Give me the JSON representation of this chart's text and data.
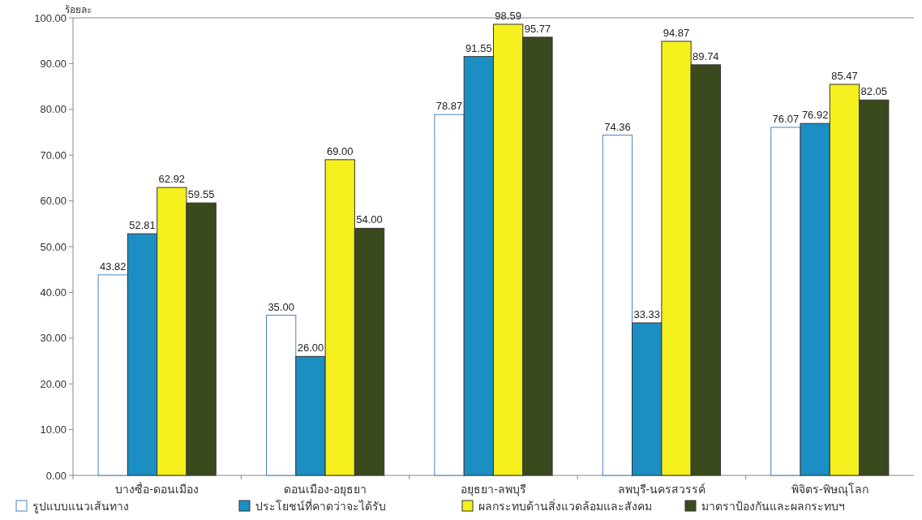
{
  "chart_data": {
    "type": "bar",
    "ylabel": "ร้อยละ",
    "categories": [
      "บางซื่อ-ดอนเมือง",
      "ดอนเมือง-อยุธยา",
      "อยุธยา-ลพบุรี",
      "ลพบุรี-นครสวรรค์",
      "พิจิตร-พิษณุโลก"
    ],
    "series": [
      {
        "name": "รูปแบบแนวเส้นทาง",
        "color": "#ffffff",
        "values": [
          43.82,
          35,
          78.87,
          74.36,
          76.07
        ],
        "value_labels": [
          "43.82",
          "35.00",
          "78.87",
          "74.36",
          "76.07"
        ]
      },
      {
        "name": "ประโยชน์ที่คาดว่าจะได้รับ",
        "color": "#1b8fc4",
        "values": [
          52.81,
          26,
          91.55,
          33.33,
          76.92
        ],
        "value_labels": [
          "52.81",
          "26.00",
          "91.55",
          "33.33",
          "76.92"
        ]
      },
      {
        "name": "ผลกระทบด้านสิ่งแวดล้อมและสังคม",
        "color": "#f5f01e",
        "values": [
          62.92,
          69,
          98.59,
          94.87,
          85.47
        ],
        "value_labels": [
          "62.92",
          "69.00",
          "98.59",
          "94.87",
          "85.47"
        ]
      },
      {
        "name": "มาตราป้องกันและผลกระทบฯ",
        "color": "#3a4a1c",
        "values": [
          59.55,
          54,
          95.77,
          89.74,
          82.05
        ],
        "value_labels": [
          "59.55",
          "54.00",
          "95.77",
          "89.74",
          "82.05"
        ]
      }
    ],
    "ylim": [
      0,
      100
    ],
    "yticks": [
      {
        "value": 0,
        "label": "0.00"
      },
      {
        "value": 10,
        "label": "10.00"
      },
      {
        "value": 20,
        "label": "20.00"
      },
      {
        "value": 30,
        "label": "30.00"
      },
      {
        "value": 40,
        "label": "40.00"
      },
      {
        "value": 50,
        "label": "50.00"
      },
      {
        "value": 60,
        "label": "60.00"
      },
      {
        "value": 70,
        "label": "70.00"
      },
      {
        "value": 80,
        "label": "80.00"
      },
      {
        "value": 90,
        "label": "90.00"
      },
      {
        "value": 100,
        "label": "100.00"
      }
    ],
    "legend": "bottom"
  }
}
